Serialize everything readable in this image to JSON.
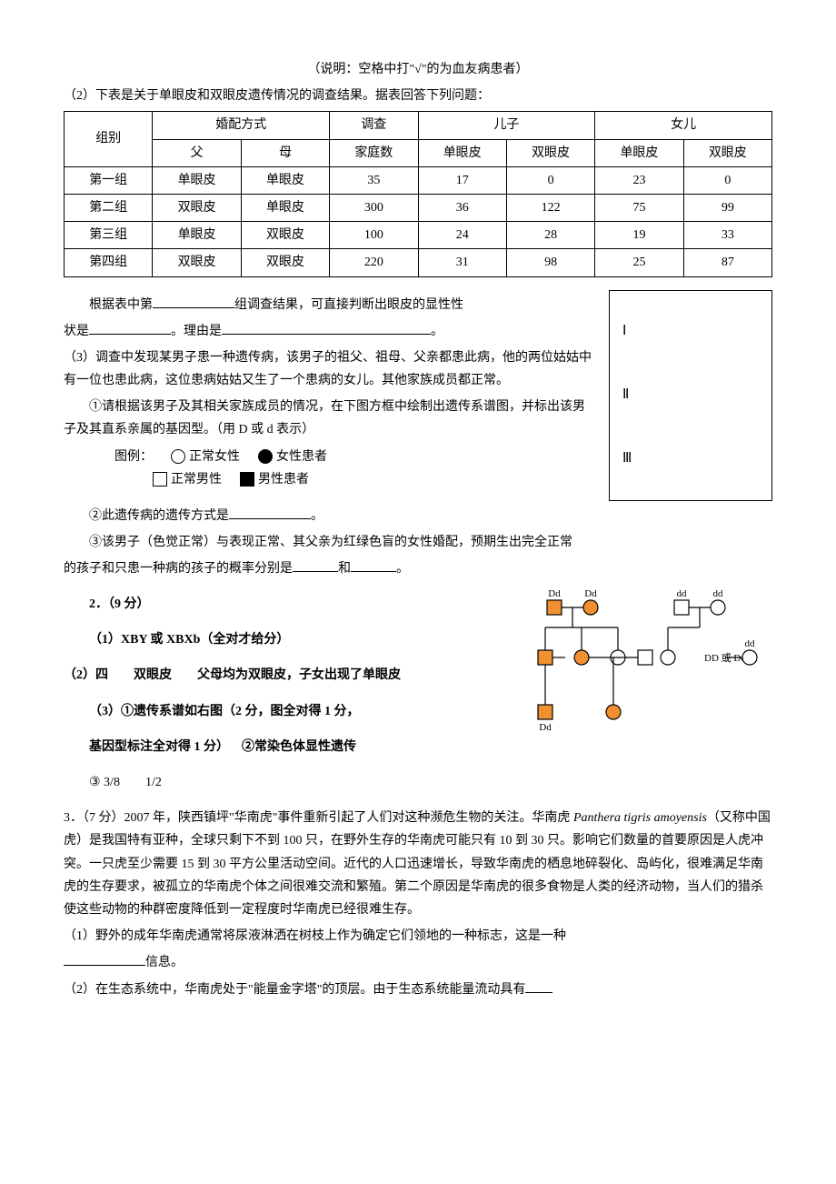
{
  "note": "（说明：空格中打\"√\"的为血友病患者）",
  "q2_intro": "（2）下表是关于单眼皮和双眼皮遗传情况的调查结果。据表回答下列问题：",
  "table": {
    "hdr_group": "组别",
    "hdr_marriage": "婚配方式",
    "hdr_survey": "调查",
    "hdr_son": "儿子",
    "hdr_daughter": "女儿",
    "sub_father": "父",
    "sub_mother": "母",
    "sub_families": "家庭数",
    "sub_single": "单眼皮",
    "sub_double": "双眼皮",
    "rows": [
      {
        "g": "第一组",
        "f": "单眼皮",
        "m": "单眼皮",
        "n": "35",
        "s1": "17",
        "s2": "0",
        "d1": "23",
        "d2": "0"
      },
      {
        "g": "第二组",
        "f": "双眼皮",
        "m": "单眼皮",
        "n": "300",
        "s1": "36",
        "s2": "122",
        "d1": "75",
        "d2": "99"
      },
      {
        "g": "第三组",
        "f": "单眼皮",
        "m": "双眼皮",
        "n": "100",
        "s1": "24",
        "s2": "28",
        "d1": "19",
        "d2": "33"
      },
      {
        "g": "第四组",
        "f": "双眼皮",
        "m": "双眼皮",
        "n": "220",
        "s1": "31",
        "s2": "98",
        "d1": "25",
        "d2": "87"
      }
    ]
  },
  "q2_line1a": "根据表中第",
  "q2_line1b": "组调查结果，可直接判断出眼皮的显性性",
  "q2_line2a": "状是",
  "q2_line2b": "。理由是",
  "q2_line2c": "。",
  "q3_p1": "（3）调查中发现某男子患一种遗传病，该男子的祖父、祖母、父亲都患此病，他的两位姑姑中有一位也患此病，这位患病姑姑又生了一个患病的女儿。其他家族成员都正常。",
  "q3_p2": "①请根据该男子及其相关家族成员的情况，在下图方框中绘制出遗传系谱图，并标出该男子及其直系亲属的基因型。（用 D 或 d 表示）",
  "legend_label": "图例：",
  "legend_nf": "正常女性",
  "legend_af": "女性患者",
  "legend_nm": "正常男性",
  "legend_am": "男性患者",
  "q3_sub2a": "②此遗传病的遗传方式是",
  "q3_sub2b": "。",
  "q3_sub3a": "③该男子（色觉正常）与表现正常、其父亲为红绿色盲的女性婚配，预期生出完全正常",
  "q3_sub3b": "的孩子和只患一种病的孩子的概率分别是",
  "q3_sub3c": "和",
  "q3_sub3d": "。",
  "box": {
    "r1": "Ⅰ",
    "r2": "Ⅱ",
    "r3": "Ⅲ"
  },
  "ans_header": "2．（9 分）",
  "ans1": "（1）XBY 或 XBXb（全对才给分）",
  "ans2": "（2）四  双眼皮  父母均为双眼皮，子女出现了单眼皮",
  "ans3a": "（3）①遗传系谱如右图（2 分，图全对得 1 分，",
  "ans3b": "基因型标注全对得 1 分） ②常染色体显性遗传",
  "ans3c": "③ 3/8  1/2",
  "pedigree": {
    "affected_fill": "#f09030",
    "normal_fill": "#ffffff",
    "stroke": "#000000",
    "labels": {
      "Dd": "Dd",
      "dd": "dd",
      "ddOrDd": "DD 或 Dd"
    }
  },
  "q3big_p1": "3．（7 分）2007 年，陕西镇坪\"华南虎\"事件重新引起了人们对这种濒危生物的关注。华南虎 ",
  "q3big_italic": "Panthera tigris amoyensis",
  "q3big_p1b": "（又称中国虎）是我国特有亚种，全球只剩下不到 100 只，在野外生存的华南虎可能只有 10 到 30 只。影响它们数量的首要原因是人虎冲突。一只虎至少需要 15 到 30 平方公里活动空间。近代的人口迅速增长，导致华南虎的栖息地碎裂化、岛屿化，很难满足华南虎的生存要求，被孤立的华南虎个体之间很难交流和繁殖。第二个原因是华南虎的很多食物是人类的经济动物，当人们的猎杀使这些动物的种群密度降低到一定程度时华南虎已经很难生存。",
  "q3big_s1a": "（1）野外的成年华南虎通常将尿液淋洒在树枝上作为确定它们领地的一种标志，这是一种",
  "q3big_s1b": "信息。",
  "q3big_s2a": "（2）在生态系统中，华南虎处于\"能量金字塔\"的顶层。由于生态系统能量流动具有"
}
